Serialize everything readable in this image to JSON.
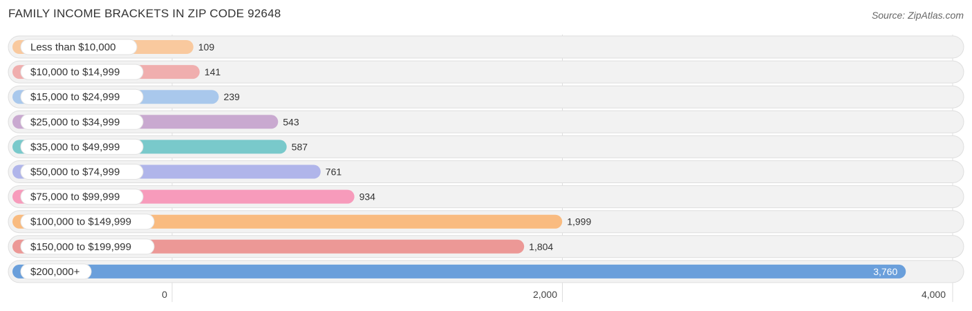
{
  "header": {
    "title": "FAMILY INCOME BRACKETS IN ZIP CODE 92648",
    "source": "Source: ZipAtlas.com"
  },
  "chart_data": {
    "type": "bar",
    "orientation": "horizontal",
    "title": "FAMILY INCOME BRACKETS IN ZIP CODE 92648",
    "categories": [
      "Less than $10,000",
      "$10,000 to $14,999",
      "$15,000 to $24,999",
      "$25,000 to $34,999",
      "$35,000 to $49,999",
      "$50,000 to $74,999",
      "$75,000 to $99,999",
      "$100,000 to $149,999",
      "$150,000 to $199,999",
      "$200,000+"
    ],
    "values": [
      109,
      141,
      239,
      543,
      587,
      761,
      934,
      1999,
      1804,
      3760
    ],
    "value_labels": [
      "109",
      "141",
      "239",
      "543",
      "587",
      "761",
      "934",
      "1,999",
      "1,804",
      "3,760"
    ],
    "colors": [
      "#f9c99e",
      "#f0aeae",
      "#a9c8ec",
      "#c9a9d0",
      "#79c9cb",
      "#b0b5ea",
      "#f79bbb",
      "#f9bb80",
      "#ec9896",
      "#6a9fdb"
    ],
    "xlim": [
      0,
      4000
    ],
    "xticks": [
      0,
      2000,
      4000
    ],
    "xtick_labels": [
      "0",
      "2,000",
      "4,000"
    ],
    "grid": true,
    "legend": "none"
  }
}
